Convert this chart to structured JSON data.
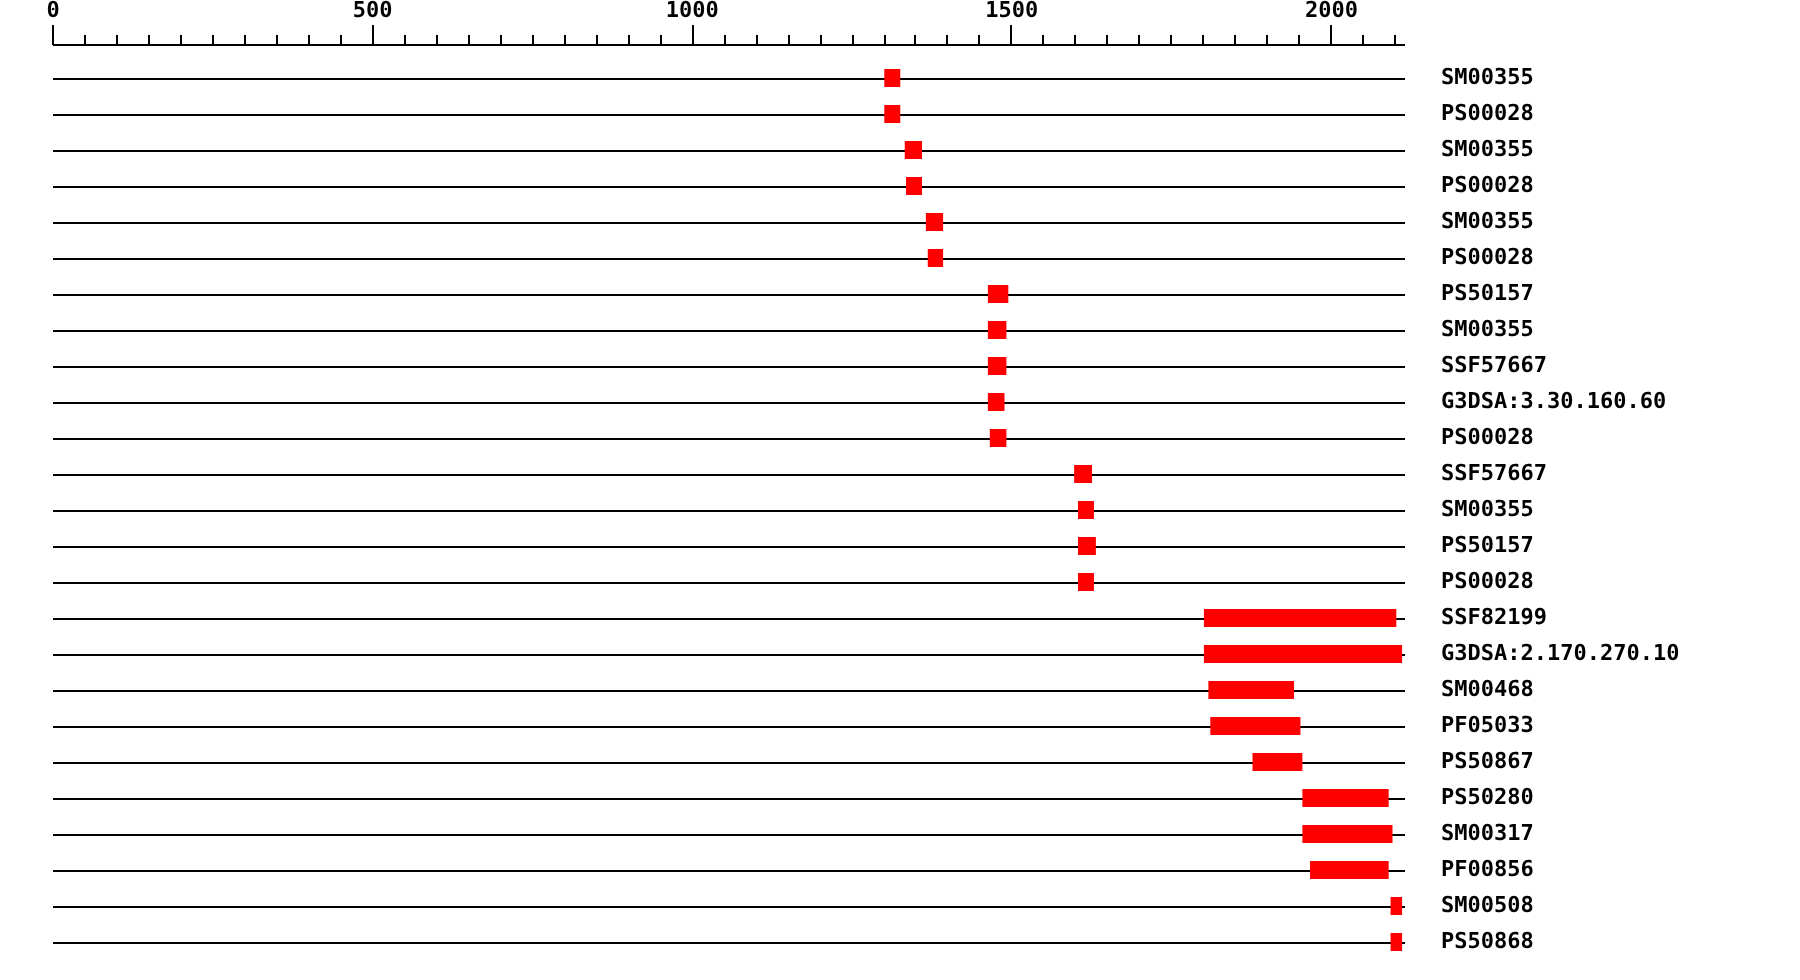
{
  "chart_data": {
    "type": "bar",
    "orientation": "horizontal",
    "grid": "y",
    "color": "#ff0000",
    "categories": [
      "SM00355",
      "PS00028",
      "SM00355",
      "PS00028",
      "SM00355",
      "PS00028",
      "PS50157",
      "SM00355",
      "SSF57667",
      "G3DSA:3.30.160.60",
      "PS00028",
      "SSF57667",
      "SM00355",
      "PS50157",
      "PS00028",
      "SSF82199",
      "G3DSA:2.170.270.10",
      "SM00468",
      "PF05033",
      "PS50867",
      "PS50280",
      "SM00317",
      "PF00856",
      "SM00508",
      "PS50868"
    ],
    "base": [
      1302,
      1302,
      1334,
      1336,
      1367,
      1370,
      1464,
      1464,
      1464,
      1464,
      1467,
      1599,
      1605,
      1605,
      1605,
      1802,
      1802,
      1809,
      1812,
      1878,
      1956,
      1956,
      1968,
      2094,
      2094
    ],
    "values": [
      25,
      25,
      27,
      25,
      27,
      24,
      32,
      29,
      29,
      26,
      26,
      28,
      25,
      28,
      25,
      301,
      310,
      134,
      141,
      78,
      135,
      141,
      123,
      18,
      18
    ],
    "xlim": [
      0,
      2115
    ],
    "xticks": [
      0,
      {
        "value": 50,
        "label": null
      },
      {
        "value": 100,
        "label": null
      },
      {
        "value": 150,
        "label": null
      },
      {
        "value": 200,
        "label": null
      },
      {
        "value": 250,
        "label": null
      },
      {
        "value": 300,
        "label": null
      },
      {
        "value": 350,
        "label": null
      },
      {
        "value": 400,
        "label": null
      },
      {
        "value": 450,
        "label": null
      },
      500,
      {
        "value": 550,
        "label": null
      },
      {
        "value": 600,
        "label": null
      },
      {
        "value": 650,
        "label": null
      },
      {
        "value": 700,
        "label": null
      },
      {
        "value": 750,
        "label": null
      },
      {
        "value": 800,
        "label": null
      },
      {
        "value": 850,
        "label": null
      },
      {
        "value": 900,
        "label": null
      },
      {
        "value": 950,
        "label": null
      },
      1000,
      {
        "value": 1050,
        "label": null
      },
      {
        "value": 1100,
        "label": null
      },
      {
        "value": 1150,
        "label": null
      },
      {
        "value": 1200,
        "label": null
      },
      {
        "value": 1250,
        "label": null
      },
      {
        "value": 1300,
        "label": null
      },
      {
        "value": 1350,
        "label": null
      },
      {
        "value": 1400,
        "label": null
      },
      {
        "value": 1450,
        "label": null
      },
      1500,
      {
        "value": 1550,
        "label": null
      },
      {
        "value": 1600,
        "label": null
      },
      {
        "value": 1650,
        "label": null
      },
      {
        "value": 1700,
        "label": null
      },
      {
        "value": 1750,
        "label": null
      },
      {
        "value": 1800,
        "label": null
      },
      {
        "value": 1850,
        "label": null
      },
      {
        "value": 1900,
        "label": null
      },
      {
        "value": 1950,
        "label": null
      },
      2000,
      {
        "value": 2050,
        "label": null
      },
      {
        "value": 2100,
        "label": null
      }
    ]
  }
}
